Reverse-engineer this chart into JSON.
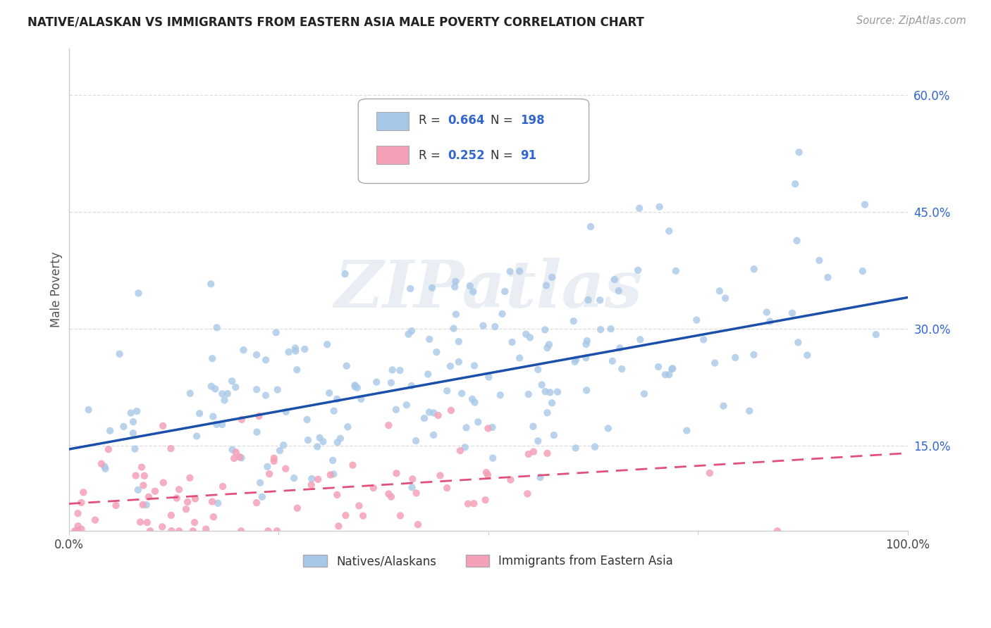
{
  "title": "NATIVE/ALASKAN VS IMMIGRANTS FROM EASTERN ASIA MALE POVERTY CORRELATION CHART",
  "source": "Source: ZipAtlas.com",
  "ylabel": "Male Poverty",
  "ytick_labels": [
    "15.0%",
    "30.0%",
    "45.0%",
    "60.0%"
  ],
  "ytick_positions": [
    0.15,
    0.3,
    0.45,
    0.6
  ],
  "xlim": [
    0.0,
    1.0
  ],
  "ylim": [
    0.04,
    0.66
  ],
  "blue_R": 0.664,
  "blue_N": 198,
  "pink_R": 0.252,
  "pink_N": 91,
  "blue_color": "#a8c8e8",
  "pink_color": "#f4a0b8",
  "line_blue": "#1a4faa",
  "line_pink": "#e0507a",
  "title_color": "#222222",
  "source_color": "#999999",
  "rv_color": "#3366cc",
  "watermark": "ZIPatlas",
  "legend_label_blue": "Natives/Alaskans",
  "legend_label_pink": "Immigrants from Eastern Asia",
  "blue_slope": 0.195,
  "blue_intercept": 0.145,
  "pink_slope": 0.065,
  "pink_intercept": 0.075,
  "blue_seed": 42,
  "pink_seed": 7,
  "bg_color": "#ffffff",
  "grid_color": "#dddddd",
  "spine_color": "#cccccc"
}
